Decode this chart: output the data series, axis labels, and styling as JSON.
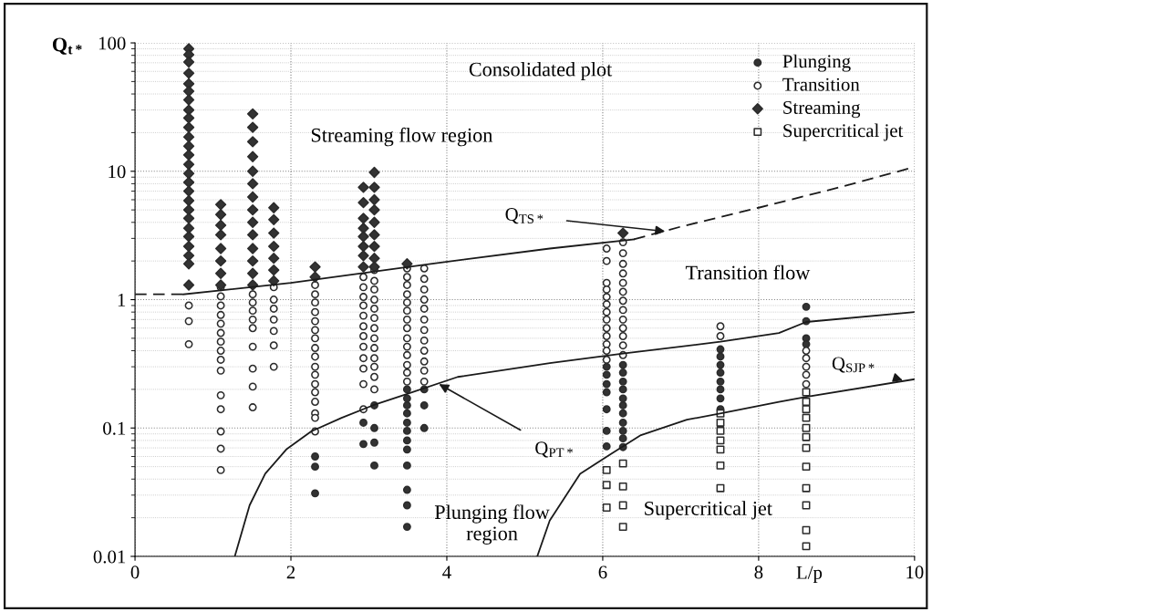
{
  "chart_data": {
    "type": "scatter",
    "xlabel": "L/p",
    "ylabel": "Q$_{t*}$",
    "log": "y",
    "xlim": [
      0,
      10
    ],
    "xticks": [
      0,
      2,
      4,
      6,
      8,
      10
    ],
    "ylim": [
      0.01,
      100
    ],
    "yticks": [
      0.01,
      0.1,
      1,
      10,
      100
    ],
    "grid": true,
    "legend": "top right",
    "series": [
      {
        "name": "Plunging",
        "marker": "circle",
        "color": "#333333",
        "x": [
          2.31,
          2.31,
          2.31,
          2.93,
          2.93,
          3.07,
          3.07,
          3.07,
          3.07,
          3.49,
          3.49,
          3.49,
          3.49,
          3.49,
          3.49,
          3.49,
          3.49,
          3.49,
          3.49,
          3.49,
          3.49,
          3.71,
          3.71,
          3.71,
          6.05,
          6.05,
          6.05,
          6.05,
          6.05,
          6.05,
          6.05,
          6.26,
          6.26,
          6.26,
          6.26,
          6.26,
          6.26,
          6.26,
          6.26,
          6.26,
          6.26,
          6.26,
          7.51,
          7.51,
          7.51,
          7.51,
          7.51,
          7.51,
          7.51,
          7.51,
          8.61,
          8.61,
          8.61,
          8.61
        ],
        "values": [
          0.06,
          0.05,
          0.031,
          0.11,
          0.075,
          0.15,
          0.1,
          0.077,
          0.051,
          0.2,
          0.17,
          0.15,
          0.13,
          0.11,
          0.095,
          0.08,
          0.068,
          0.051,
          0.033,
          0.025,
          0.017,
          0.2,
          0.15,
          0.1,
          0.3,
          0.26,
          0.22,
          0.19,
          0.14,
          0.095,
          0.072,
          0.31,
          0.27,
          0.23,
          0.2,
          0.17,
          0.15,
          0.13,
          0.11,
          0.095,
          0.083,
          0.071,
          0.41,
          0.36,
          0.31,
          0.27,
          0.23,
          0.2,
          0.17,
          0.14,
          0.88,
          0.68,
          0.5,
          0.45
        ]
      },
      {
        "name": "Transition",
        "marker": "circle",
        "color": "#ffffff",
        "x": [
          0.69,
          0.69,
          0.69,
          1.1,
          1.1,
          1.1,
          1.1,
          1.1,
          1.1,
          1.1,
          1.1,
          1.1,
          1.1,
          1.1,
          1.1,
          1.1,
          1.1,
          1.1,
          1.51,
          1.51,
          1.51,
          1.51,
          1.51,
          1.51,
          1.51,
          1.51,
          1.51,
          1.51,
          1.78,
          1.78,
          1.78,
          1.78,
          1.78,
          1.78,
          1.78,
          2.31,
          2.31,
          2.31,
          2.31,
          2.31,
          2.31,
          2.31,
          2.31,
          2.31,
          2.31,
          2.31,
          2.31,
          2.31,
          2.31,
          2.31,
          2.31,
          2.31,
          2.93,
          2.93,
          2.93,
          2.93,
          2.93,
          2.93,
          2.93,
          2.93,
          2.93,
          2.93,
          2.93,
          2.93,
          3.07,
          3.07,
          3.07,
          3.07,
          3.07,
          3.07,
          3.07,
          3.07,
          3.07,
          3.07,
          3.07,
          3.07,
          3.07,
          3.49,
          3.49,
          3.49,
          3.49,
          3.49,
          3.49,
          3.49,
          3.49,
          3.49,
          3.49,
          3.49,
          3.49,
          3.49,
          3.49,
          3.71,
          3.71,
          3.71,
          3.71,
          3.71,
          3.71,
          3.71,
          3.71,
          3.71,
          3.71,
          3.71,
          3.71,
          6.05,
          6.05,
          6.05,
          6.05,
          6.05,
          6.05,
          6.05,
          6.05,
          6.05,
          6.05,
          6.05,
          6.05,
          6.05,
          6.26,
          6.26,
          6.26,
          6.26,
          6.26,
          6.26,
          6.26,
          6.26,
          6.26,
          6.26,
          6.26,
          6.26,
          6.26,
          7.51,
          7.51,
          8.61,
          8.61,
          8.61,
          8.61,
          8.61
        ],
        "values": [
          0.9,
          0.68,
          0.45,
          1.25,
          1.06,
          0.9,
          0.76,
          0.65,
          0.55,
          0.47,
          0.4,
          0.34,
          0.28,
          0.18,
          0.14,
          0.094,
          0.069,
          0.047,
          1.3,
          1.1,
          0.95,
          0.82,
          0.7,
          0.6,
          0.43,
          0.29,
          0.21,
          0.145,
          1.25,
          1.0,
          0.85,
          0.7,
          0.57,
          0.44,
          0.3,
          1.3,
          1.1,
          0.95,
          0.8,
          0.68,
          0.58,
          0.5,
          0.42,
          0.36,
          0.3,
          0.26,
          0.22,
          0.19,
          0.16,
          0.13,
          0.12,
          0.094,
          1.5,
          1.25,
          1.05,
          0.9,
          0.75,
          0.62,
          0.52,
          0.43,
          0.35,
          0.29,
          0.22,
          0.14,
          1.7,
          1.4,
          1.2,
          1.0,
          0.85,
          0.72,
          0.6,
          0.5,
          0.42,
          0.35,
          0.3,
          0.25,
          0.2,
          1.75,
          1.5,
          1.3,
          1.1,
          0.95,
          0.82,
          0.7,
          0.6,
          0.5,
          0.43,
          0.37,
          0.31,
          0.27,
          0.23,
          1.75,
          1.45,
          1.2,
          1.0,
          0.85,
          0.7,
          0.58,
          0.48,
          0.4,
          0.33,
          0.28,
          0.23,
          2.5,
          2.0,
          1.35,
          1.2,
          1.05,
          0.92,
          0.8,
          0.7,
          0.6,
          0.52,
          0.45,
          0.4,
          0.34,
          2.8,
          2.3,
          1.9,
          1.6,
          1.35,
          1.15,
          0.98,
          0.83,
          0.7,
          0.6,
          0.52,
          0.44,
          0.37,
          0.62,
          0.52,
          0.4,
          0.35,
          0.3,
          0.26,
          0.22
        ]
      },
      {
        "name": "Streaming",
        "marker": "diamond",
        "color": "#333333",
        "x": [
          0.69,
          0.69,
          0.69,
          0.69,
          0.69,
          0.69,
          0.69,
          0.69,
          0.69,
          0.69,
          0.69,
          0.69,
          0.69,
          0.69,
          0.69,
          0.69,
          0.69,
          0.69,
          0.69,
          0.69,
          0.69,
          0.69,
          0.69,
          0.69,
          0.69,
          0.69,
          1.1,
          1.1,
          1.1,
          1.1,
          1.1,
          1.1,
          1.1,
          1.1,
          1.51,
          1.51,
          1.51,
          1.51,
          1.51,
          1.51,
          1.51,
          1.51,
          1.51,
          1.51,
          1.51,
          1.51,
          1.51,
          1.51,
          1.78,
          1.78,
          1.78,
          1.78,
          1.78,
          1.78,
          1.78,
          2.31,
          2.31,
          2.93,
          2.93,
          2.93,
          2.93,
          2.93,
          2.93,
          2.93,
          2.93,
          3.07,
          3.07,
          3.07,
          3.07,
          3.07,
          3.07,
          3.07,
          3.07,
          3.07,
          3.49,
          6.26
        ],
        "values": [
          90,
          81,
          71,
          58,
          48,
          42,
          36,
          30,
          26,
          22,
          18.5,
          15.7,
          13.4,
          11.3,
          9.6,
          8.2,
          7.0,
          5.9,
          5.0,
          4.3,
          3.6,
          3.1,
          2.6,
          2.2,
          1.9,
          1.3,
          5.5,
          4.6,
          3.8,
          3.2,
          2.5,
          2.0,
          1.6,
          1.3,
          28,
          22,
          17,
          13,
          10,
          8,
          6.3,
          5,
          4,
          3.2,
          2.5,
          2.0,
          1.6,
          1.3,
          5.2,
          4.2,
          3.3,
          2.6,
          2.1,
          1.7,
          1.4,
          1.8,
          1.5,
          7.5,
          5.7,
          4.3,
          3.6,
          3.1,
          2.6,
          2.2,
          1.8,
          9.8,
          7.5,
          6,
          5,
          4,
          3.2,
          2.6,
          2.1,
          1.8,
          1.9,
          3.3
        ]
      },
      {
        "name": "Supercritical jet",
        "marker": "square",
        "color": "#ffffff",
        "x": [
          6.05,
          6.05,
          6.05,
          6.26,
          6.26,
          6.26,
          6.26,
          7.51,
          7.51,
          7.51,
          7.51,
          7.51,
          7.51,
          7.51,
          8.61,
          8.61,
          8.61,
          8.61,
          8.61,
          8.61,
          8.61,
          8.61,
          8.61,
          8.61,
          8.61,
          8.61
        ],
        "values": [
          0.047,
          0.036,
          0.024,
          0.053,
          0.035,
          0.025,
          0.017,
          0.13,
          0.11,
          0.095,
          0.08,
          0.068,
          0.051,
          0.034,
          0.19,
          0.16,
          0.14,
          0.12,
          0.1,
          0.085,
          0.07,
          0.05,
          0.034,
          0.025,
          0.016,
          0.012
        ]
      },
      {
        "type": "line",
        "line_style": "dashed",
        "marker": "none",
        "color": "#1a1a1a",
        "x": [
          0,
          0.62
        ],
        "values": [
          1.1,
          1.1
        ]
      },
      {
        "type": "line",
        "line_style": "solid",
        "marker": "none",
        "color": "#1a1a1a",
        "x": [
          0.62,
          2,
          3.79,
          5.32,
          6.4
        ],
        "values": [
          1.1,
          1.35,
          1.9,
          2.5,
          2.95
        ]
      },
      {
        "type": "line",
        "line_style": "dashed",
        "marker": "none",
        "color": "#1a1a1a",
        "x": [
          6.4,
          7,
          8,
          9,
          10
        ],
        "values": [
          2.95,
          3.7,
          5.2,
          7.4,
          10.8
        ]
      },
      {
        "type": "line",
        "line_style": "solid",
        "marker": "none",
        "color": "#1a1a1a",
        "x": [
          1.28,
          1.47,
          1.67,
          1.94,
          2.26,
          2.65,
          3.05,
          3.44,
          4.14,
          5.32,
          6.26,
          7.51,
          8.26,
          8.61,
          10
        ],
        "values": [
          0.01,
          0.025,
          0.044,
          0.068,
          0.094,
          0.12,
          0.15,
          0.18,
          0.25,
          0.32,
          0.38,
          0.47,
          0.55,
          0.67,
          0.8
        ]
      },
      {
        "type": "line",
        "line_style": "solid",
        "marker": "none",
        "color": "#1a1a1a",
        "x": [
          5.16,
          5.32,
          5.71,
          6.11,
          6.49,
          7.08,
          7.52,
          8.26,
          8.61,
          10
        ],
        "values": [
          0.01,
          0.019,
          0.044,
          0.063,
          0.088,
          0.116,
          0.13,
          0.16,
          0.175,
          0.24
        ]
      }
    ],
    "annotations": [
      "Consolidated plot",
      "Streaming flow region",
      "Transition flow",
      "Plunging flow\nregion",
      "Supercritical jet",
      {
        "text": "Q$_{TS*}$",
        "x": 6.8,
        "y": 3.4
      },
      {
        "text": "Q$_{PT*}$",
        "x": 3.9,
        "y": 0.22
      },
      {
        "text": "Q$_{SJP*}$",
        "x": 9.85,
        "y": 0.235
      }
    ]
  }
}
